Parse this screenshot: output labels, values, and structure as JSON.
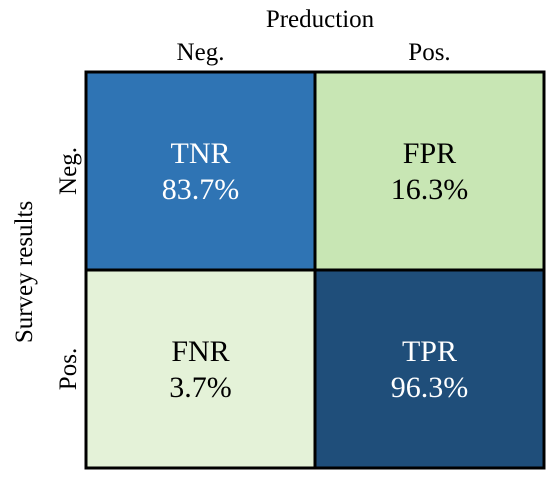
{
  "chart_data": {
    "type": "heatmap",
    "title": "",
    "xlabel": "Preduction",
    "ylabel": "Survey results",
    "x_categories": [
      "Neg.",
      "Pos."
    ],
    "y_categories": [
      "Neg.",
      "Pos."
    ],
    "cells": [
      {
        "row": 0,
        "col": 0,
        "label": "TNR",
        "value": "83.7%",
        "fill": "#2f74b4",
        "text_color": "#ffffff"
      },
      {
        "row": 0,
        "col": 1,
        "label": "FPR",
        "value": "16.3%",
        "fill": "#c8e6b4",
        "text_color": "#000000"
      },
      {
        "row": 1,
        "col": 0,
        "label": "FNR",
        "value": "3.7%",
        "fill": "#e4f2d8",
        "text_color": "#000000"
      },
      {
        "row": 1,
        "col": 1,
        "label": "TPR",
        "value": "96.3%",
        "fill": "#1f4e7a",
        "text_color": "#ffffff"
      }
    ],
    "grid": true,
    "legend": "none"
  }
}
